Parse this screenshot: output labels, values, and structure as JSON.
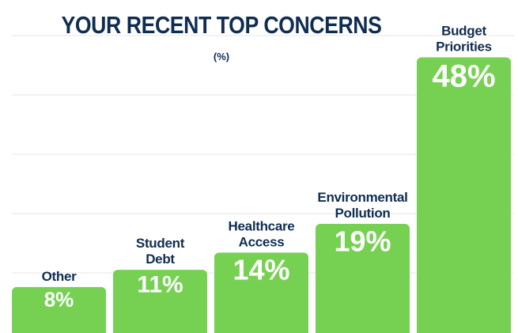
{
  "chart_data": {
    "type": "bar",
    "title": "YOUR RECENT TOP CONCERNS",
    "subtitle": "(%)",
    "categories": [
      "Other",
      "Student Debt",
      "Healthcare Access",
      "Environmental Pollution",
      "Budget Priorities"
    ],
    "category_lines": [
      [
        "Other"
      ],
      [
        "Student",
        "Debt"
      ],
      [
        "Healthcare",
        "Access"
      ],
      [
        "Environmental",
        "Pollution"
      ],
      [
        "Budget",
        "Priorities"
      ]
    ],
    "values": [
      8,
      11,
      14,
      19,
      48
    ],
    "value_labels": [
      "8%",
      "11%",
      "14%",
      "19%",
      "48%"
    ],
    "ylim": [
      0,
      50
    ],
    "grid": true,
    "colors": {
      "bar": "#76d153",
      "grid": "#e6e6e6",
      "text": "#0f2d52"
    }
  }
}
